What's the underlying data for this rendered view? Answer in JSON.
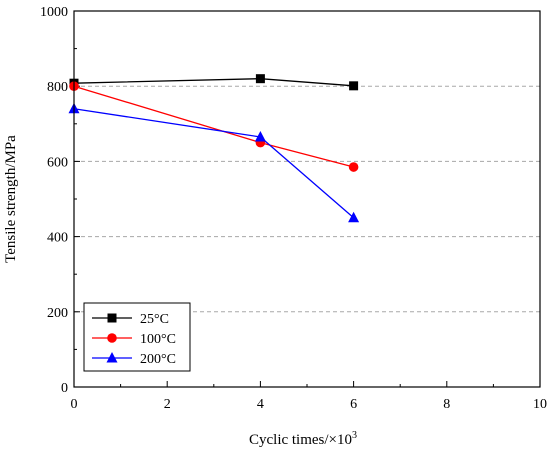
{
  "chart_data": {
    "type": "line",
    "xlabel": "Cyclic times/×10",
    "xlabel_sup": "3",
    "ylabel": "Tensile strength/MPa",
    "xlim": [
      0,
      10
    ],
    "ylim": [
      0,
      1000
    ],
    "xticks": [
      "0",
      "2",
      "4",
      "6",
      "8",
      "10"
    ],
    "yticks": [
      "0",
      "200",
      "400",
      "600",
      "800",
      "1000"
    ],
    "grid": "horizontal dashed",
    "legend_position": "bottom-left",
    "series": [
      {
        "name": "25°C",
        "color": "#000000",
        "marker": "square",
        "x": [
          0,
          4,
          6
        ],
        "y": [
          808,
          820,
          801
        ]
      },
      {
        "name": "100°C",
        "color": "#ff0000",
        "marker": "circle",
        "x": [
          0,
          4,
          6
        ],
        "y": [
          800,
          650,
          585
        ]
      },
      {
        "name": "200°C",
        "color": "#0000ff",
        "marker": "triangle",
        "x": [
          0,
          4,
          6
        ],
        "y": [
          740,
          665,
          450
        ]
      }
    ]
  }
}
